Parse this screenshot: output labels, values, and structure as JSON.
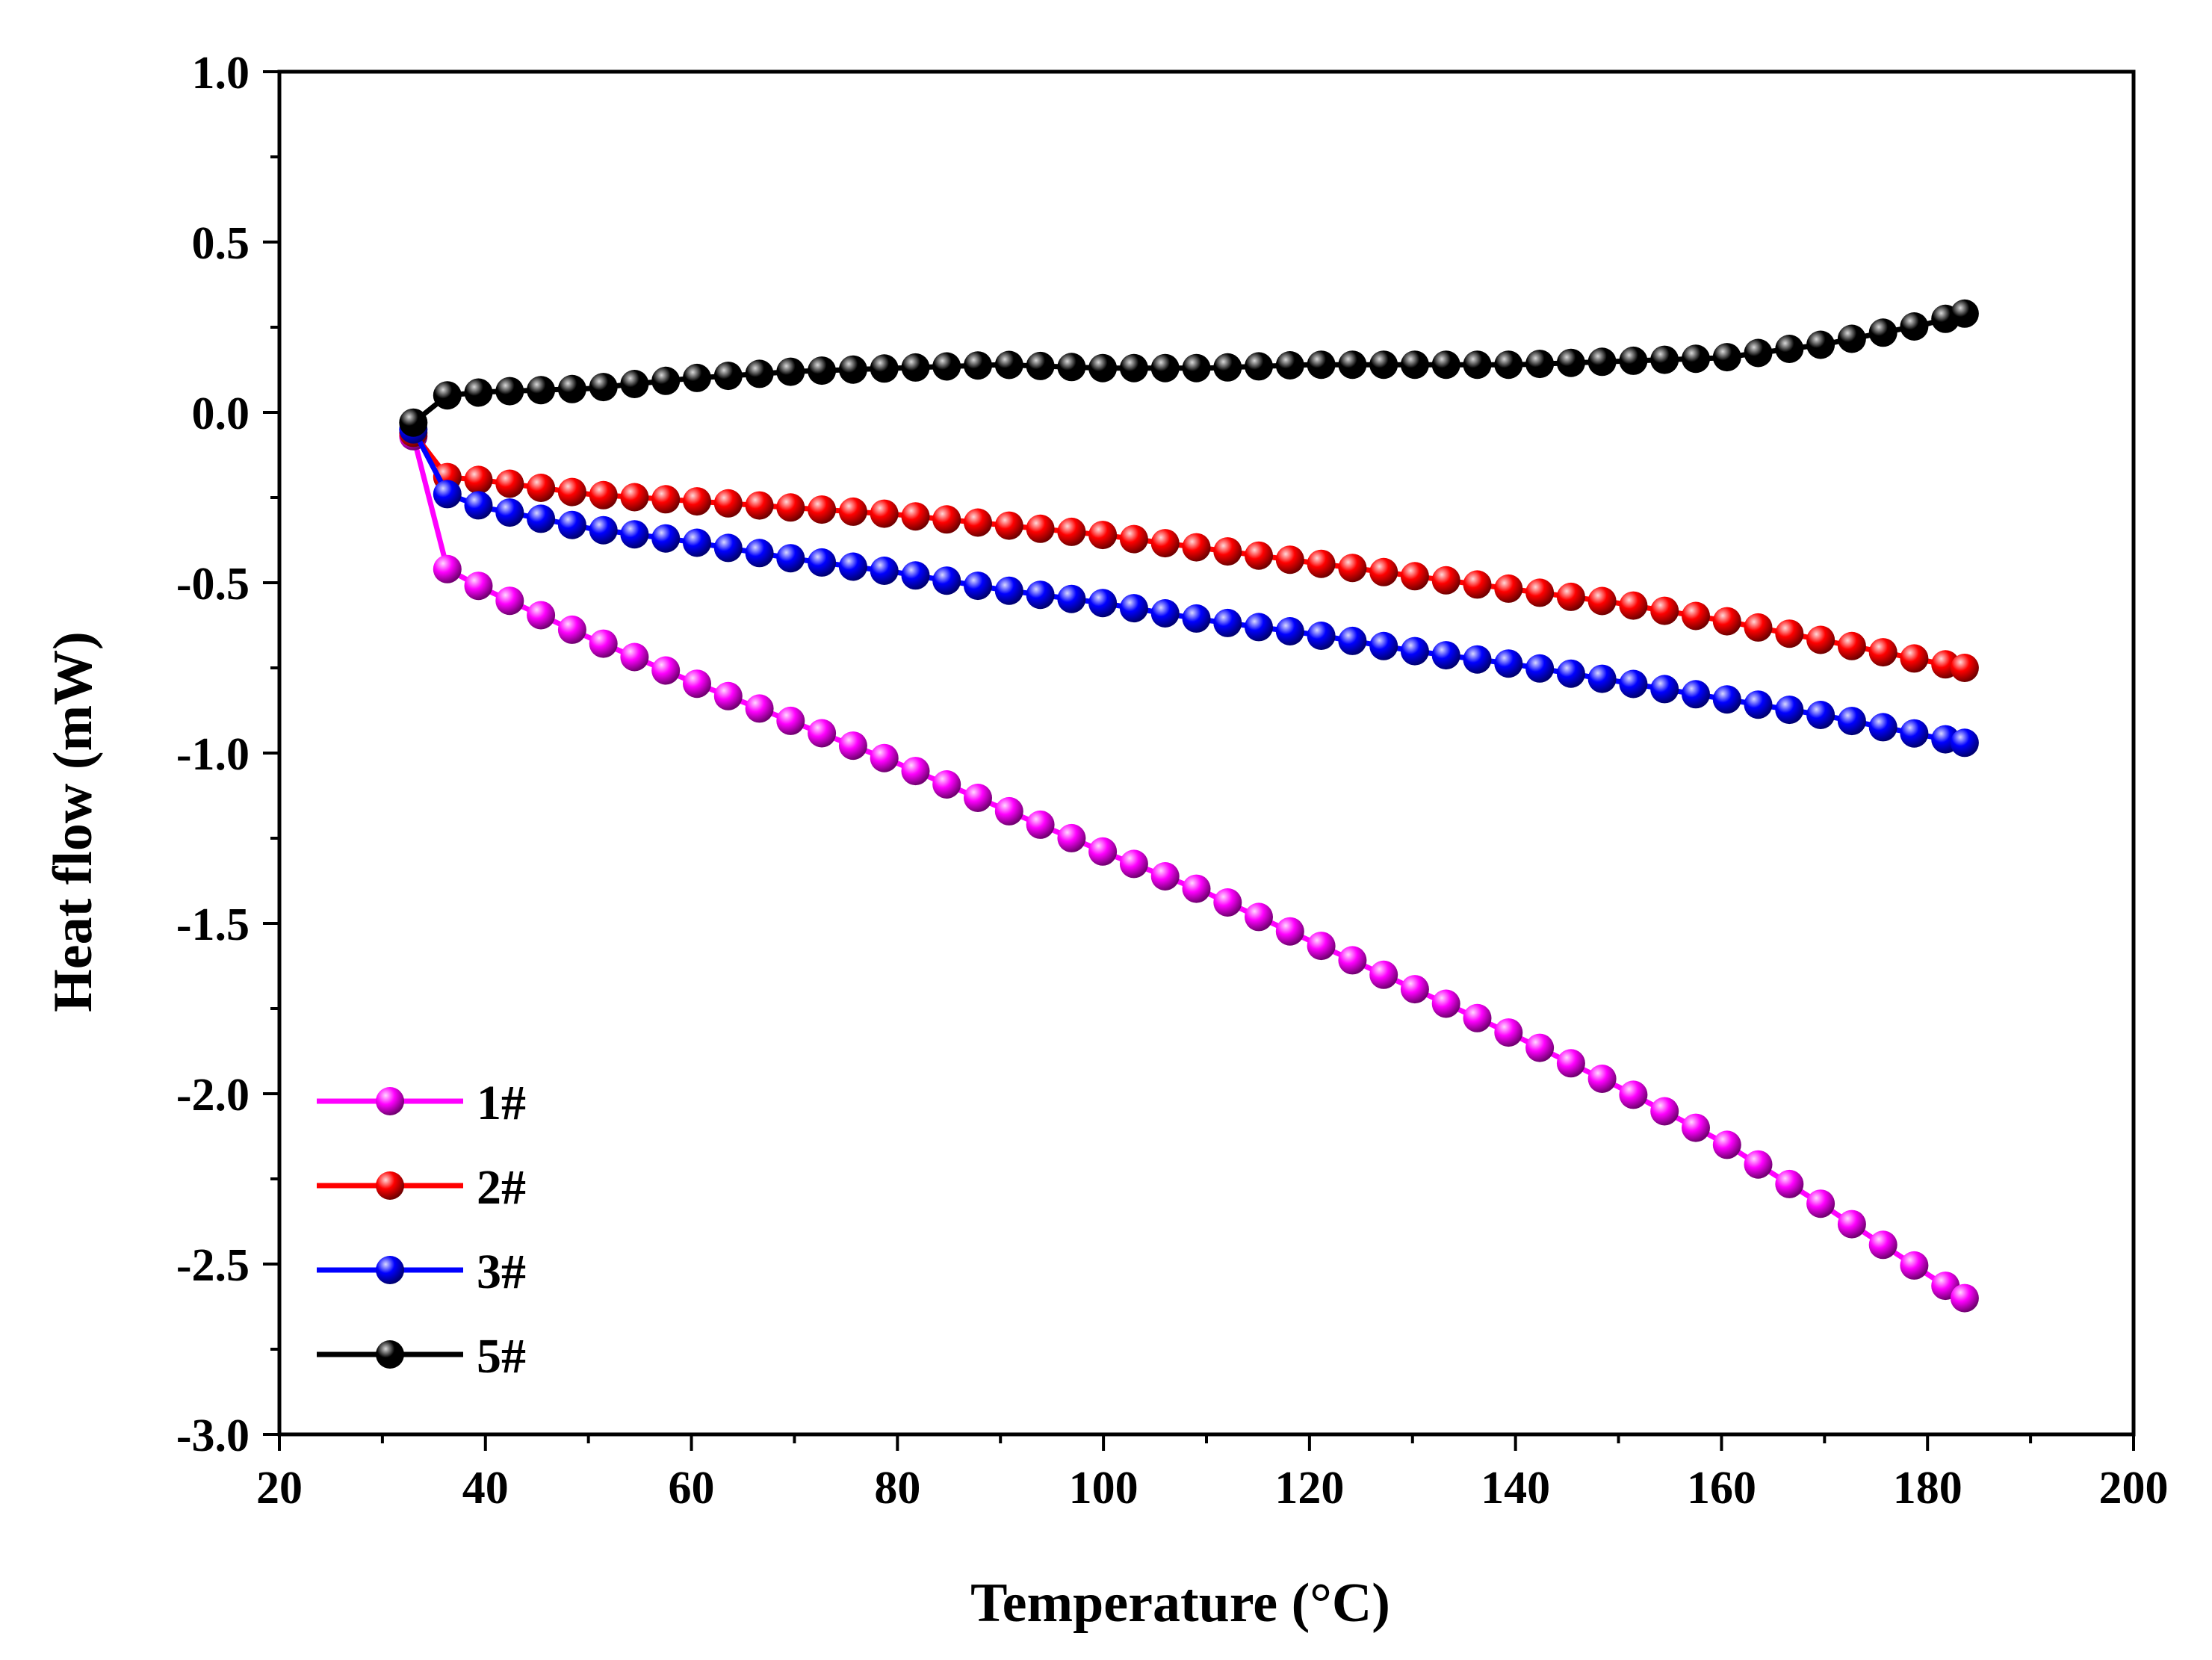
{
  "chart_data": {
    "type": "line",
    "title": "",
    "xlabel": "Temperature (°C)",
    "ylabel": "Heat flow (mW)",
    "xlim": [
      20,
      200
    ],
    "ylim": [
      -3.0,
      1.0
    ],
    "x_ticks": [
      20,
      40,
      60,
      80,
      100,
      120,
      140,
      160,
      180,
      200
    ],
    "y_ticks": [
      1.0,
      0.5,
      0.0,
      -0.5,
      -1.0,
      -1.5,
      -2.0,
      -2.5,
      -3.0
    ],
    "x_tick_labels": [
      "20",
      "40",
      "60",
      "80",
      "100",
      "120",
      "140",
      "160",
      "180",
      "200"
    ],
    "y_tick_labels": [
      "1.0",
      "0.5",
      "0.0",
      "-0.5",
      "-1.0",
      "-1.5",
      "-2.0",
      "-2.5",
      "-3.0"
    ],
    "grid": false,
    "legend_position": "bottom-left",
    "series": [
      {
        "name": "1#",
        "color": "#ff00ff",
        "x": [
          33.0,
          36.3,
          40,
          50,
          60,
          70,
          80,
          90,
          100,
          110,
          120,
          130,
          140,
          150,
          160,
          170,
          180,
          183.6
        ],
        "y": [
          -0.07,
          -0.46,
          -0.52,
          -0.66,
          -0.79,
          -0.91,
          -1.03,
          -1.16,
          -1.29,
          -1.41,
          -1.55,
          -1.69,
          -1.83,
          -1.98,
          -2.14,
          -2.33,
          -2.53,
          -2.6
        ]
      },
      {
        "name": "2#",
        "color": "#ff0000",
        "x": [
          33.0,
          36.3,
          40,
          50,
          60,
          70,
          80,
          90,
          100,
          110,
          120,
          130,
          140,
          150,
          160,
          170,
          180,
          183.6
        ],
        "y": [
          -0.06,
          -0.19,
          -0.2,
          -0.24,
          -0.26,
          -0.28,
          -0.3,
          -0.33,
          -0.36,
          -0.4,
          -0.44,
          -0.48,
          -0.52,
          -0.56,
          -0.61,
          -0.67,
          -0.73,
          -0.75
        ]
      },
      {
        "name": "3#",
        "color": "#0000ff",
        "x": [
          33.0,
          36.3,
          40,
          50,
          60,
          70,
          80,
          90,
          100,
          110,
          120,
          130,
          140,
          150,
          160,
          170,
          180,
          183.6
        ],
        "y": [
          -0.05,
          -0.24,
          -0.28,
          -0.34,
          -0.38,
          -0.43,
          -0.47,
          -0.52,
          -0.56,
          -0.61,
          -0.65,
          -0.7,
          -0.74,
          -0.79,
          -0.84,
          -0.89,
          -0.95,
          -0.97
        ]
      },
      {
        "name": "5#",
        "color": "#000000",
        "x": [
          33.0,
          36.3,
          40,
          50,
          60,
          70,
          80,
          90,
          100,
          110,
          120,
          130,
          140,
          150,
          160,
          170,
          180,
          183.6
        ],
        "y": [
          -0.03,
          0.05,
          0.06,
          0.07,
          0.1,
          0.12,
          0.13,
          0.14,
          0.13,
          0.13,
          0.14,
          0.14,
          0.14,
          0.15,
          0.16,
          0.2,
          0.26,
          0.29
        ]
      }
    ]
  }
}
